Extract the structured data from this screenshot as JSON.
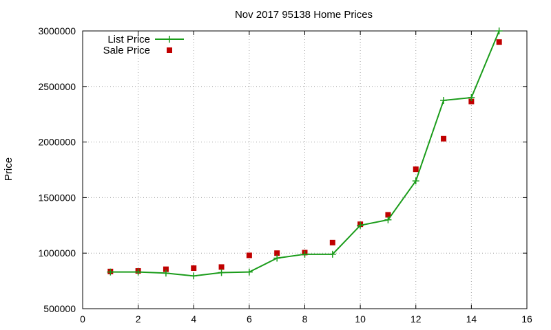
{
  "chart_data": {
    "type": "line",
    "title": "Nov 2017 95138 Home Prices",
    "xlabel": "",
    "ylabel": "Price",
    "xlim": [
      0,
      16
    ],
    "ylim": [
      500000,
      3000000
    ],
    "xticks": [
      0,
      2,
      4,
      6,
      8,
      10,
      12,
      14,
      16
    ],
    "yticks": [
      500000,
      1000000,
      1500000,
      2000000,
      2500000,
      3000000
    ],
    "grid": true,
    "legend_position": "top-left",
    "series": [
      {
        "name": "List Price",
        "style": "line-points",
        "color": "#1a9c1a",
        "marker": "plus",
        "x": [
          1,
          2,
          3,
          4,
          5,
          6,
          7,
          8,
          9,
          10,
          11,
          12,
          13,
          14,
          15
        ],
        "values": [
          830000,
          830000,
          820000,
          795000,
          825000,
          830000,
          955000,
          990000,
          990000,
          1250000,
          1300000,
          1650000,
          2375000,
          2400000,
          3000000
        ]
      },
      {
        "name": "Sale Price",
        "style": "points",
        "color": "#c00000",
        "marker": "square",
        "x": [
          1,
          2,
          3,
          4,
          5,
          6,
          7,
          8,
          9,
          10,
          11,
          12,
          13,
          14,
          15
        ],
        "values": [
          835000,
          840000,
          855000,
          865000,
          875000,
          980000,
          1000000,
          1005000,
          1095000,
          1260000,
          1345000,
          1755000,
          2030000,
          2365000,
          2900000
        ]
      }
    ]
  }
}
